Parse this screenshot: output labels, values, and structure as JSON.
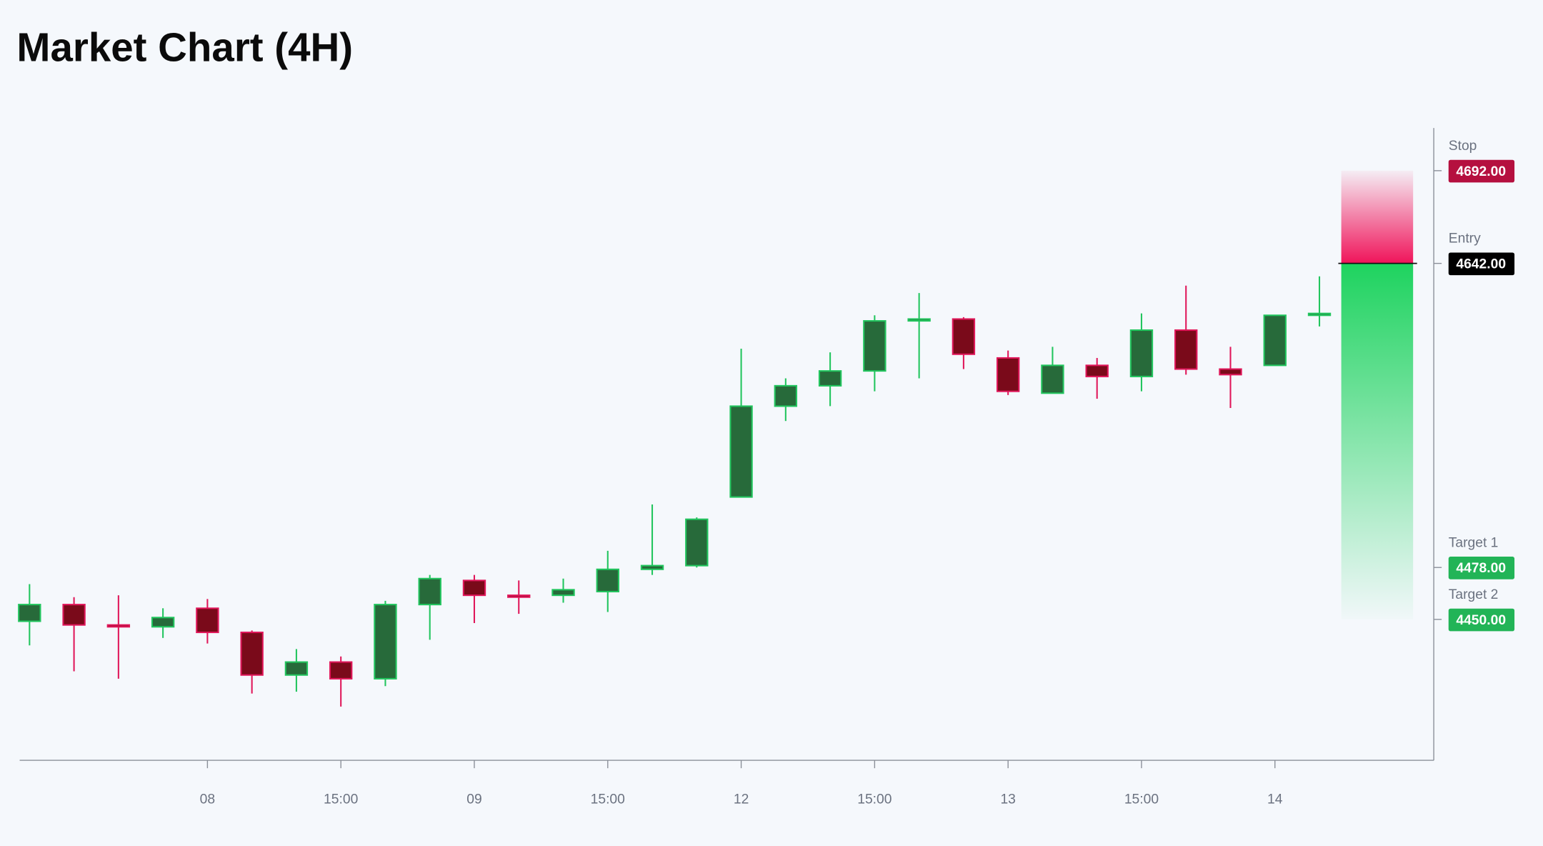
{
  "chart_data": {
    "type": "candlestick",
    "title": "Market Chart (4H)",
    "categories": [
      null,
      null,
      null,
      null,
      "08",
      null,
      null,
      "15:00",
      null,
      null,
      "09",
      null,
      null,
      "15:00",
      null,
      null,
      "12",
      null,
      null,
      "15:00",
      null,
      null,
      "13",
      null,
      null,
      "15:00",
      null,
      null,
      "14",
      null
    ],
    "open": [
      4449,
      4458,
      4447,
      4446,
      4456,
      4443,
      4420,
      4427,
      4418,
      4458,
      4471,
      4463,
      4463,
      4465,
      4477,
      4479,
      4516,
      4565,
      4576,
      4584,
      4611,
      4612,
      4591,
      4572,
      4587,
      4581,
      4606,
      4585,
      4587,
      4614
    ],
    "high": [
      4469,
      4462,
      4463,
      4456,
      4461,
      4444,
      4434,
      4430,
      4460,
      4474,
      4474,
      4471,
      4472,
      4487,
      4512,
      4505,
      4596,
      4580,
      4594,
      4614,
      4626,
      4613,
      4595,
      4597,
      4591,
      4615,
      4630,
      4597,
      4614,
      4635
    ],
    "low": [
      4436,
      4422,
      4418,
      4440,
      4437,
      4410,
      4411,
      4403,
      4414,
      4439,
      4448,
      4453,
      4459,
      4454,
      4474,
      4478,
      4516,
      4557,
      4565,
      4573,
      4580,
      4585,
      4571,
      4572,
      4569,
      4573,
      4582,
      4564,
      4587,
      4608
    ],
    "close": [
      4458,
      4447,
      4446,
      4451,
      4443,
      4420,
      4427,
      4418,
      4458,
      4472,
      4463,
      4462,
      4466,
      4477,
      4479,
      4504,
      4565,
      4576,
      4584,
      4611,
      4612,
      4593,
      4573,
      4587,
      4581,
      4606,
      4585,
      4582,
      4614,
      4615
    ],
    "up_color": "#22c55e",
    "down_color": "#e0175a",
    "ylim": [
      4374,
      4715
    ],
    "levels": {
      "names": [
        "Stop",
        "Entry",
        "Target 1",
        "Target 2"
      ],
      "values": [
        4692,
        4642,
        4478,
        4450
      ],
      "value_labels": [
        "4692.00",
        "4642.00",
        "4478.00",
        "4450.00"
      ],
      "colors": [
        "#b5103f",
        "#000000",
        "#22b457",
        "#22b457"
      ]
    }
  }
}
